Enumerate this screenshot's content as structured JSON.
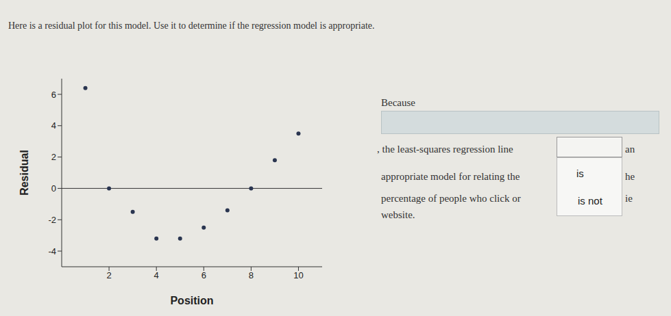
{
  "header": {
    "text": "Here is a residual plot for this model. Use it to determine if the regression model is appropriate."
  },
  "chart_data": {
    "type": "scatter",
    "x_label": "Position",
    "y_label": "Residual",
    "x": [
      1,
      2,
      3,
      4,
      5,
      6,
      7,
      8,
      9,
      10
    ],
    "values": [
      6.4,
      0,
      -1.5,
      -3.2,
      -3.2,
      -2.5,
      -1.4,
      0,
      1.8,
      3.5
    ],
    "color": "#2a3550",
    "xlim": [
      0,
      11
    ],
    "xticks": [
      2,
      4,
      6,
      8,
      10
    ],
    "ylim": [
      -5,
      7
    ],
    "yticks": [
      -4,
      -2,
      0,
      2,
      4,
      6
    ],
    "reference_y": 0,
    "grid": false
  },
  "question": {
    "because": "Because",
    "line1": ", the least-squares regression line",
    "line1_end": "an",
    "line2": "appropriate model for relating the",
    "line2_end": "he",
    "line3": "percentage of people who click or",
    "line3_end": "ie",
    "line4": "website.",
    "options": [
      "is",
      "is not"
    ]
  }
}
